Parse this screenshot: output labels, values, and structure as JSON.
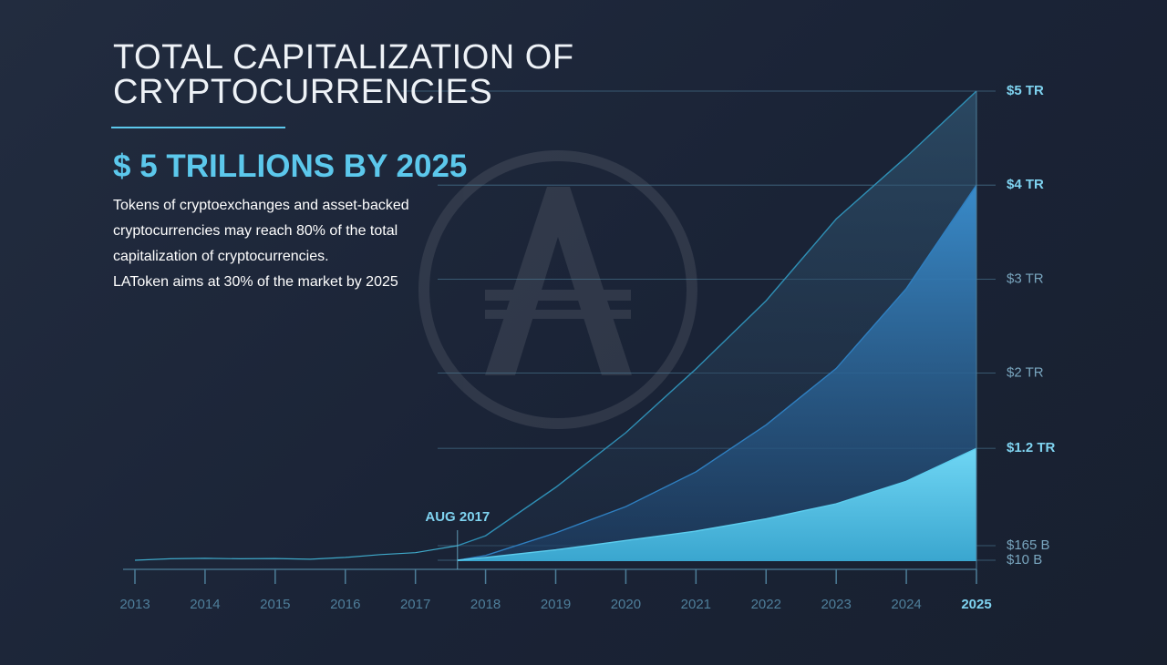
{
  "chart_data": {
    "type": "area",
    "title": "TOTAL CAPITALIZATION OF CRYPTOCURRENCIES",
    "subtitle": "$ 5 TRILLIONS BY 2025",
    "description": [
      "Tokens of cryptoexchanges and asset-backed cryptocurrencies may reach 80% of the total capitalization of cryptocurrencies.",
      "LAToken aims at 30% of the market by 2025"
    ],
    "annotation": {
      "text": "AUG 2017",
      "x": 2017.6
    },
    "xlim": [
      2013,
      2025
    ],
    "xticks": [
      2013,
      2014,
      2015,
      2016,
      2017,
      2018,
      2019,
      2020,
      2021,
      2022,
      2023,
      2024,
      2025
    ],
    "ylim": [
      0,
      5000
    ],
    "yticks": [
      {
        "value": 5000,
        "label": "$5 TR"
      },
      {
        "value": 4000,
        "label": "$4 TR"
      },
      {
        "value": 3000,
        "label": "$3 TR"
      },
      {
        "value": 2000,
        "label": "$2 TR"
      },
      {
        "value": 1200,
        "label": "$1.2 TR"
      },
      {
        "value": 165,
        "label": "$165 B"
      },
      {
        "value": 10,
        "label": "$10 B"
      }
    ],
    "grid": true,
    "series": [
      {
        "color": "#3fa9c9",
        "x": [
          2013,
          2013.5,
          2014,
          2014.5,
          2015,
          2015.5,
          2016,
          2016.5,
          2017,
          2017.6
        ],
        "values": [
          10,
          25,
          30,
          25,
          28,
          20,
          40,
          70,
          90,
          165
        ]
      },
      {
        "color": "#2f8fb5",
        "x": [
          2017.6,
          2018,
          2019,
          2020,
          2021,
          2022,
          2023,
          2024,
          2025
        ],
        "values": [
          165,
          270,
          785,
          1366,
          2045,
          2770,
          3640,
          4300,
          5000
        ]
      },
      {
        "color": "#2f7fc0",
        "x": [
          2017.6,
          2018,
          2019,
          2020,
          2021,
          2022,
          2023,
          2024,
          2025
        ],
        "values": [
          10,
          60,
          300,
          580,
          950,
          1450,
          2050,
          2900,
          4000
        ]
      },
      {
        "color": "#5ccdee",
        "x": [
          2017.6,
          2018,
          2019,
          2020,
          2021,
          2022,
          2023,
          2024,
          2025
        ],
        "values": [
          10,
          40,
          120,
          220,
          320,
          450,
          610,
          850,
          1200
        ]
      }
    ]
  }
}
